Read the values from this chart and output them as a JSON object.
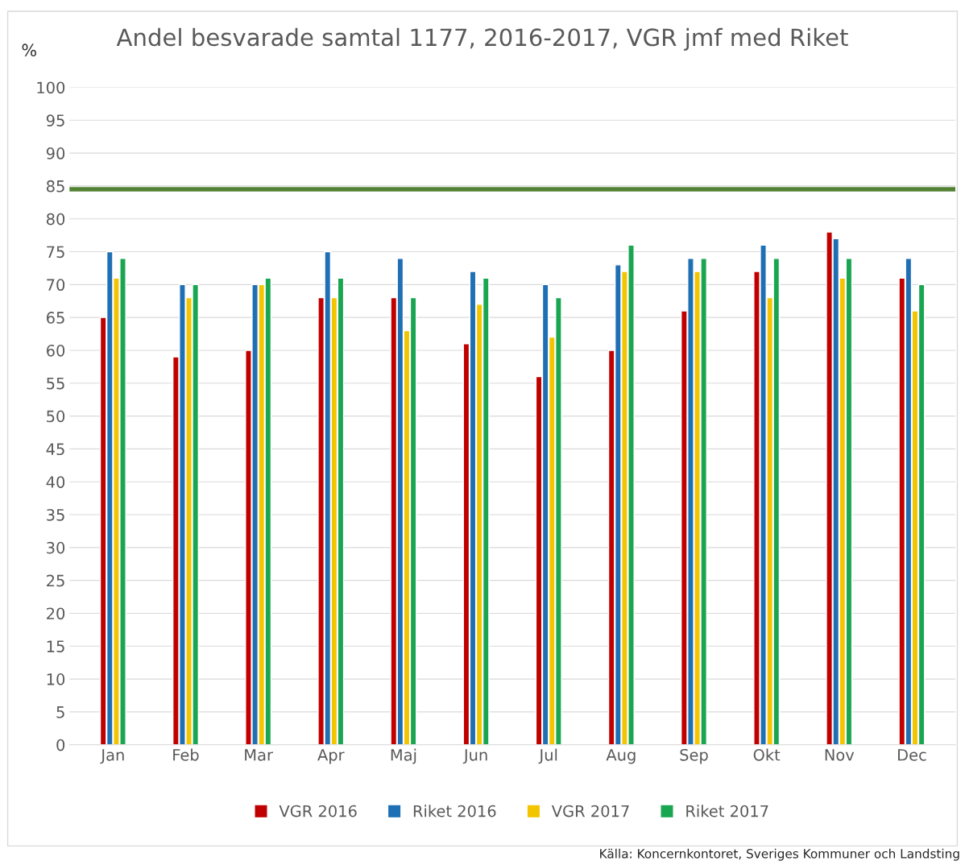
{
  "chart_data": {
    "type": "bar",
    "title": "Andel besvarade samtal 1177, 2016-2017, VGR jmf med Riket",
    "ylabel": "%",
    "categories": [
      "Jan",
      "Feb",
      "Mar",
      "Apr",
      "Maj",
      "Jun",
      "Jul",
      "Aug",
      "Sep",
      "Okt",
      "Nov",
      "Dec"
    ],
    "series": [
      {
        "name": "VGR 2016",
        "color": "#c00000",
        "values": [
          65,
          59,
          60,
          68,
          68,
          61,
          56,
          60,
          66,
          72,
          78,
          71
        ]
      },
      {
        "name": "Riket 2016",
        "color": "#1f6fb5",
        "values": [
          75,
          70,
          70,
          75,
          74,
          72,
          70,
          73,
          74,
          76,
          77,
          74
        ]
      },
      {
        "name": "VGR 2017",
        "color": "#f2c500",
        "values": [
          71,
          68,
          70,
          68,
          63,
          67,
          62,
          72,
          72,
          68,
          71,
          66
        ]
      },
      {
        "name": "Riket 2017",
        "color": "#1aa651",
        "values": [
          74,
          70,
          71,
          71,
          68,
          71,
          68,
          76,
          74,
          74,
          74,
          70
        ]
      }
    ],
    "ylim": [
      0,
      100
    ],
    "yticks": [
      0,
      5,
      10,
      15,
      20,
      25,
      30,
      35,
      40,
      45,
      50,
      55,
      60,
      65,
      70,
      75,
      80,
      85,
      90,
      95,
      100
    ],
    "ref_lines": [
      {
        "axis": "y",
        "value": 84.5,
        "color": "#548235"
      }
    ],
    "grid": "y",
    "legend": "bottom",
    "annotations": [
      "Källa: Koncernkontoret, Sveriges Kommuner och Landsting"
    ]
  }
}
